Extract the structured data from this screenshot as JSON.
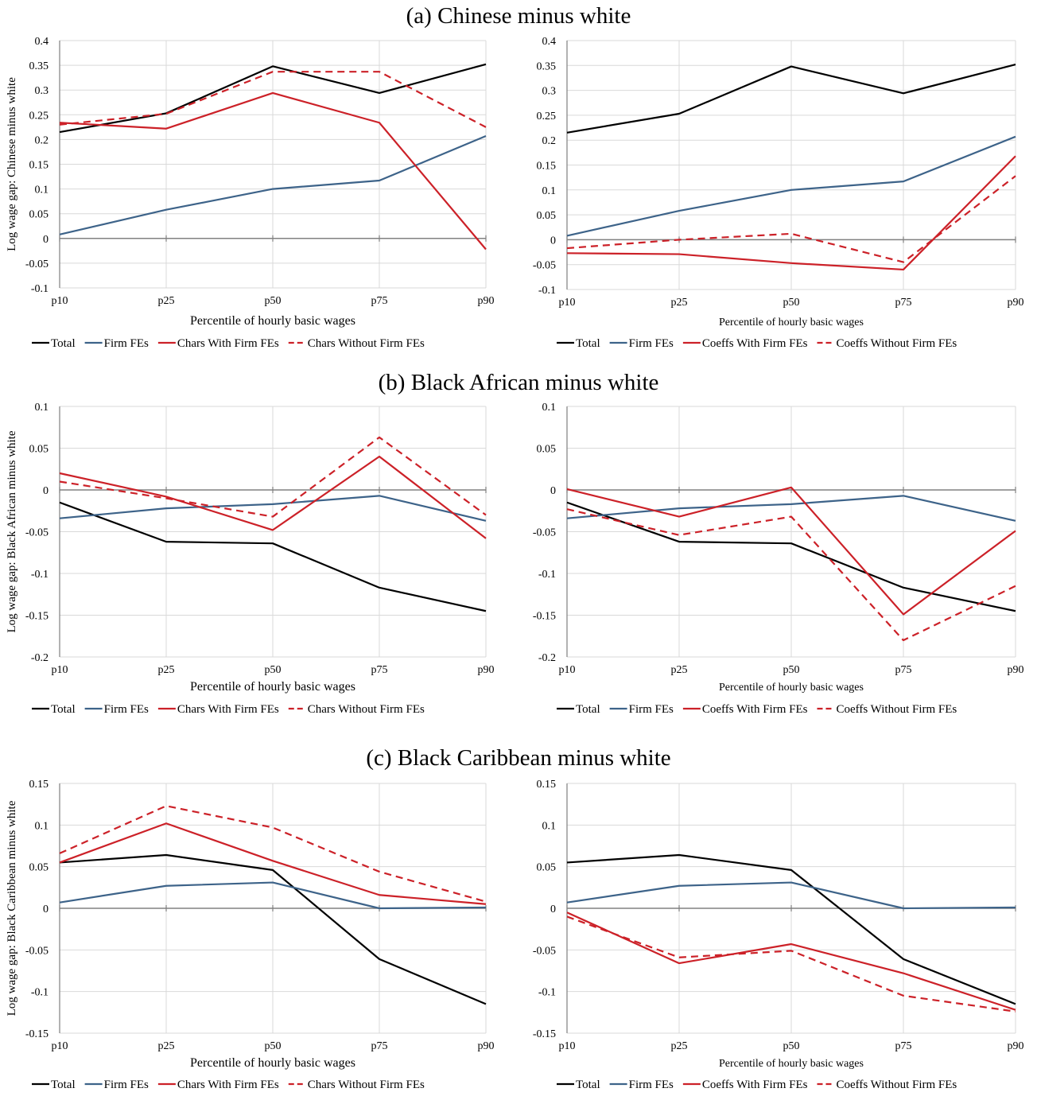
{
  "titles": [
    "(a) Chinese minus white",
    "(b) Black African minus white",
    "(c) Black Caribbean minus white"
  ],
  "colors": {
    "total": "#000000",
    "firm": "#3d6389",
    "red": "#cc2128",
    "grid": "#d9d9d9",
    "axis": "#808080"
  },
  "chart_data": [
    {
      "type": "line",
      "panel": "a-left",
      "categories": [
        "p10",
        "p25",
        "p50",
        "p75",
        "p90"
      ],
      "ylabel": "Log wage gap: Chinese minus white",
      "xlabel": "Percentile of hourly basic wages",
      "ylim": [
        -0.1,
        0.4
      ],
      "yticks": [
        "-0.1",
        "-0.05",
        "0",
        "0.05",
        "0.1",
        "0.15",
        "0.2",
        "0.25",
        "0.3",
        "0.35",
        "0.4"
      ],
      "grid": true,
      "legend_position": "bottom",
      "series": [
        {
          "name": "Total",
          "color": "#000000",
          "dash": "solid",
          "values": [
            0.215,
            0.253,
            0.348,
            0.294,
            0.352
          ]
        },
        {
          "name": "Firm FEs",
          "color": "#3d6389",
          "dash": "solid",
          "values": [
            0.008,
            0.058,
            0.1,
            0.117,
            0.207
          ]
        },
        {
          "name": "Chars With Firm FEs",
          "color": "#cc2128",
          "dash": "solid",
          "values": [
            0.234,
            0.222,
            0.294,
            0.234,
            -0.022
          ]
        },
        {
          "name": "Chars Without Firm FEs",
          "color": "#cc2128",
          "dash": "dashed",
          "values": [
            0.23,
            0.252,
            0.337,
            0.337,
            0.225
          ]
        }
      ]
    },
    {
      "type": "line",
      "panel": "a-right",
      "categories": [
        "p10",
        "p25",
        "p50",
        "p75",
        "p90"
      ],
      "ylabel": "",
      "xlabel": "Percentile of hourly basic wages",
      "ylim": [
        -0.1,
        0.4
      ],
      "yticks": [
        "-0.1",
        "-0.05",
        "0",
        "0.05",
        "0.1",
        "0.15",
        "0.2",
        "0.25",
        "0.3",
        "0.35",
        "0.4"
      ],
      "grid": true,
      "legend_position": "bottom",
      "series": [
        {
          "name": "Total",
          "color": "#000000",
          "dash": "solid",
          "values": [
            0.215,
            0.253,
            0.348,
            0.294,
            0.352
          ]
        },
        {
          "name": "Firm FEs",
          "color": "#3d6389",
          "dash": "solid",
          "values": [
            0.008,
            0.058,
            0.1,
            0.117,
            0.207
          ]
        },
        {
          "name": "Coeffs With Firm FEs",
          "color": "#cc2128",
          "dash": "solid",
          "values": [
            -0.027,
            -0.029,
            -0.047,
            -0.06,
            0.168
          ]
        },
        {
          "name": "Coeffs Without Firm FEs",
          "color": "#cc2128",
          "dash": "dashed",
          "values": [
            -0.017,
            0.0,
            0.012,
            -0.045,
            0.128
          ]
        }
      ]
    },
    {
      "type": "line",
      "panel": "b-left",
      "categories": [
        "p10",
        "p25",
        "p50",
        "p75",
        "p90"
      ],
      "ylabel": "Log wage gap: Black African minus white",
      "xlabel": "Percentile of hourly basic wages",
      "ylim": [
        -0.2,
        0.1
      ],
      "yticks": [
        "-0.2",
        "-0.15",
        "-0.1",
        "-0.05",
        "0",
        "0.05",
        "0.1"
      ],
      "grid": true,
      "legend_position": "bottom",
      "series": [
        {
          "name": "Total",
          "color": "#000000",
          "dash": "solid",
          "values": [
            -0.015,
            -0.062,
            -0.064,
            -0.117,
            -0.145
          ]
        },
        {
          "name": "Firm FEs",
          "color": "#3d6389",
          "dash": "solid",
          "values": [
            -0.034,
            -0.022,
            -0.017,
            -0.007,
            -0.037
          ]
        },
        {
          "name": "Chars With Firm FEs",
          "color": "#cc2128",
          "dash": "solid",
          "values": [
            0.02,
            -0.008,
            -0.048,
            0.04,
            -0.058
          ]
        },
        {
          "name": "Chars Without Firm FEs",
          "color": "#cc2128",
          "dash": "dashed",
          "values": [
            0.01,
            -0.01,
            -0.032,
            0.063,
            -0.03
          ]
        }
      ]
    },
    {
      "type": "line",
      "panel": "b-right",
      "categories": [
        "p10",
        "p25",
        "p50",
        "p75",
        "p90"
      ],
      "ylabel": "",
      "xlabel": "Percentile of hourly basic wages",
      "ylim": [
        -0.2,
        0.1
      ],
      "yticks": [
        "-0.2",
        "-0.15",
        "-0.1",
        "-0.05",
        "0",
        "0.05",
        "0.1"
      ],
      "grid": true,
      "legend_position": "bottom",
      "series": [
        {
          "name": "Total",
          "color": "#000000",
          "dash": "solid",
          "values": [
            -0.015,
            -0.062,
            -0.064,
            -0.117,
            -0.145
          ]
        },
        {
          "name": "Firm FEs",
          "color": "#3d6389",
          "dash": "solid",
          "values": [
            -0.034,
            -0.022,
            -0.017,
            -0.007,
            -0.037
          ]
        },
        {
          "name": "Coeffs With Firm FEs",
          "color": "#cc2128",
          "dash": "solid",
          "values": [
            0.001,
            -0.032,
            0.003,
            -0.149,
            -0.049
          ]
        },
        {
          "name": "Coeffs Without Firm FEs",
          "color": "#cc2128",
          "dash": "dashed",
          "values": [
            -0.023,
            -0.054,
            -0.032,
            -0.18,
            -0.115
          ]
        }
      ]
    },
    {
      "type": "line",
      "panel": "c-left",
      "categories": [
        "p10",
        "p25",
        "p50",
        "p75",
        "p90"
      ],
      "ylabel": "Log wage gap: Black Caribbean minus white",
      "xlabel": "Percentile of hourly basic wages",
      "ylim": [
        -0.15,
        0.15
      ],
      "yticks": [
        "-0.15",
        "-0.1",
        "-0.05",
        "0",
        "0.05",
        "0.1",
        "0.15"
      ],
      "grid": true,
      "legend_position": "bottom",
      "series": [
        {
          "name": "Total",
          "color": "#000000",
          "dash": "solid",
          "values": [
            0.055,
            0.064,
            0.046,
            -0.061,
            -0.115
          ]
        },
        {
          "name": "Firm FEs",
          "color": "#3d6389",
          "dash": "solid",
          "values": [
            0.007,
            0.027,
            0.031,
            0.0,
            0.001
          ]
        },
        {
          "name": "Chars With Firm FEs",
          "color": "#cc2128",
          "dash": "solid",
          "values": [
            0.055,
            0.102,
            0.057,
            0.016,
            0.005
          ]
        },
        {
          "name": "Chars Without Firm FEs",
          "color": "#cc2128",
          "dash": "dashed",
          "values": [
            0.066,
            0.123,
            0.097,
            0.044,
            0.008
          ]
        }
      ]
    },
    {
      "type": "line",
      "panel": "c-right",
      "categories": [
        "p10",
        "p25",
        "p50",
        "p75",
        "p90"
      ],
      "ylabel": "",
      "xlabel": "Percentile of hourly basic wages",
      "ylim": [
        -0.15,
        0.15
      ],
      "yticks": [
        "-0.15",
        "-0.1",
        "-0.05",
        "0",
        "0.05",
        "0.1",
        "0.15"
      ],
      "grid": true,
      "legend_position": "bottom",
      "series": [
        {
          "name": "Total",
          "color": "#000000",
          "dash": "solid",
          "values": [
            0.055,
            0.064,
            0.046,
            -0.061,
            -0.115
          ]
        },
        {
          "name": "Firm FEs",
          "color": "#3d6389",
          "dash": "solid",
          "values": [
            0.007,
            0.027,
            0.031,
            0.0,
            0.001
          ]
        },
        {
          "name": "Coeffs With Firm FEs",
          "color": "#cc2128",
          "dash": "solid",
          "values": [
            -0.005,
            -0.066,
            -0.043,
            -0.078,
            -0.122
          ]
        },
        {
          "name": "Coeffs Without Firm FEs",
          "color": "#cc2128",
          "dash": "dashed",
          "values": [
            -0.01,
            -0.059,
            -0.051,
            -0.105,
            -0.124
          ]
        }
      ]
    }
  ]
}
